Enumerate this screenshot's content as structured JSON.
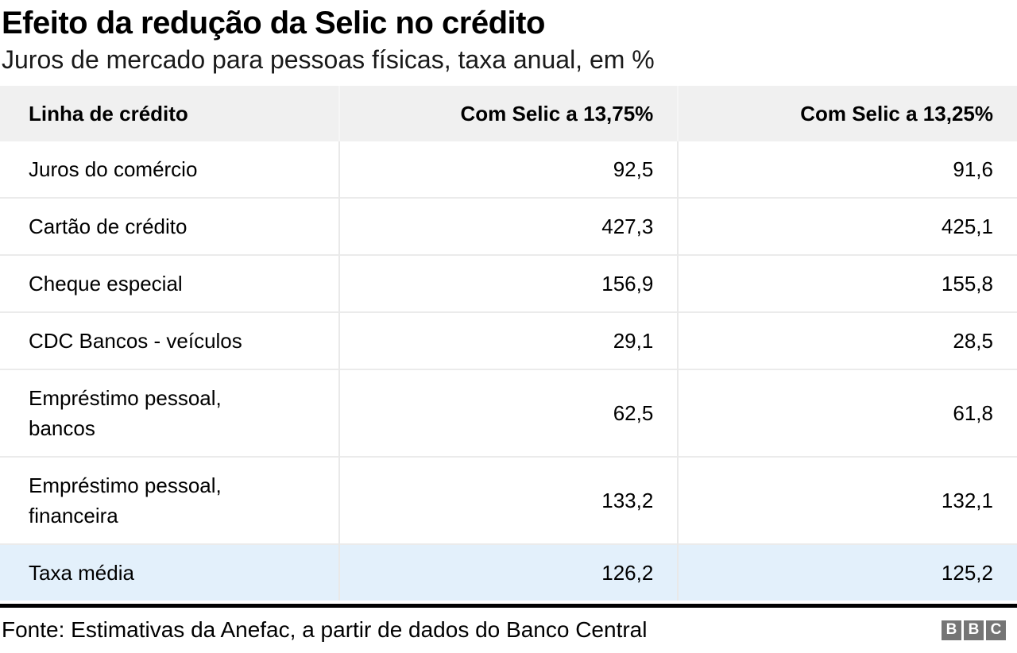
{
  "header": {
    "title": "Efeito da redução da Selic no crédito",
    "subtitle": "Juros de mercado para pessoas físicas, taxa anual, em %"
  },
  "table": {
    "columns": [
      "Linha de crédito",
      "Com Selic a 13,75%",
      "Com Selic a 13,25%"
    ],
    "rows": [
      {
        "label": "Juros do comércio",
        "values": [
          "92,5",
          "91,6"
        ],
        "highlight": false
      },
      {
        "label": "Cartão de crédito",
        "values": [
          "427,3",
          "425,1"
        ],
        "highlight": false
      },
      {
        "label": "Cheque especial",
        "values": [
          "156,9",
          "155,8"
        ],
        "highlight": false
      },
      {
        "label": "CDC Bancos - veículos",
        "values": [
          "29,1",
          "28,5"
        ],
        "highlight": false
      },
      {
        "label": "Empréstimo pessoal,\nbancos",
        "values": [
          "62,5",
          "61,8"
        ],
        "highlight": false
      },
      {
        "label": "Empréstimo pessoal,\nfinanceira",
        "values": [
          "133,2",
          "132,1"
        ],
        "highlight": false
      },
      {
        "label": "Taxa média",
        "values": [
          "126,2",
          "125,2"
        ],
        "highlight": true
      }
    ]
  },
  "footer": {
    "source": "Fonte: Estimativas da Anefac, a partir de dados do Banco Central",
    "logo_letters": [
      "B",
      "B",
      "C"
    ]
  },
  "colors": {
    "header_row_bg": "#f0f0f0",
    "highlight_row_bg": "#e3f0fb",
    "row_border": "#ebebeb",
    "column_border": "#e9e9e9",
    "divider": "#000000",
    "logo_block": "#757575",
    "text": "#000000"
  },
  "chart_data": {
    "type": "table",
    "title": "Efeito da redução da Selic no crédito",
    "subtitle": "Juros de mercado para pessoas físicas, taxa anual, em %",
    "columns": [
      "Linha de crédito",
      "Com Selic a 13,75%",
      "Com Selic a 13,25%"
    ],
    "rows": [
      [
        "Juros do comércio",
        92.5,
        91.6
      ],
      [
        "Cartão de crédito",
        427.3,
        425.1
      ],
      [
        "Cheque especial",
        156.9,
        155.8
      ],
      [
        "CDC Bancos - veículos",
        29.1,
        28.5
      ],
      [
        "Empréstimo pessoal, bancos",
        62.5,
        61.8
      ],
      [
        "Empréstimo pessoal, financeira",
        133.2,
        132.1
      ],
      [
        "Taxa média",
        126.2,
        125.2
      ]
    ],
    "highlight_row": "Taxa média",
    "value_unit": "% ao ano",
    "source": "Fonte: Estimativas da Anefac, a partir de dados do Banco Central"
  }
}
